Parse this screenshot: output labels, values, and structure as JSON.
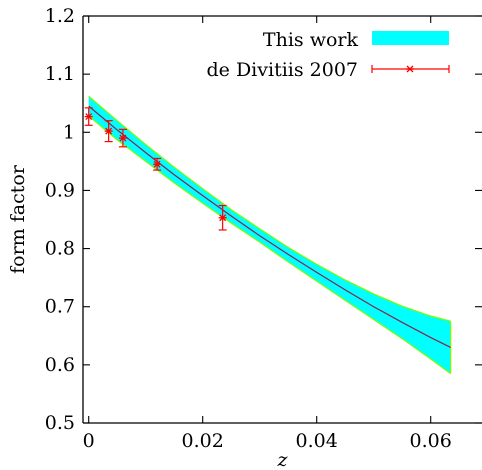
{
  "chart_data": {
    "type": "line",
    "xlabel": "z",
    "ylabel": "form factor",
    "xlim": [
      -0.001,
      0.069
    ],
    "ylim": [
      0.5,
      1.2
    ],
    "xticks": [
      0,
      0.02,
      0.04,
      0.06
    ],
    "xtick_labels": [
      "0",
      "0.02",
      "0.04",
      "0.06"
    ],
    "yticks": [
      0.5,
      0.6,
      0.7,
      0.8,
      0.9,
      1.0,
      1.1,
      1.2
    ],
    "ytick_labels": [
      "0.5",
      "0.6",
      "0.7",
      "0.8",
      "0.9",
      "1",
      "1.1",
      "1.2"
    ],
    "legend_position": "top-right",
    "series": [
      {
        "name": "This work",
        "kind": "band",
        "x": [
          0.0,
          0.005,
          0.01,
          0.015,
          0.02,
          0.025,
          0.03,
          0.035,
          0.04,
          0.045,
          0.05,
          0.055,
          0.06,
          0.0635
        ],
        "y": [
          1.045,
          1.004,
          0.965,
          0.927,
          0.891,
          0.856,
          0.822,
          0.79,
          0.759,
          0.729,
          0.7,
          0.673,
          0.647,
          0.63
        ],
        "upper": [
          1.062,
          1.02,
          0.979,
          0.94,
          0.903,
          0.867,
          0.834,
          0.802,
          0.773,
          0.746,
          0.722,
          0.701,
          0.684,
          0.675
        ],
        "lower": [
          1.028,
          0.987,
          0.95,
          0.913,
          0.878,
          0.844,
          0.811,
          0.777,
          0.744,
          0.711,
          0.678,
          0.645,
          0.61,
          0.585
        ],
        "fill_color": "#00ffff",
        "edge_color": "#7cfc00",
        "line_color": "#8b2252"
      },
      {
        "name": "de Divitiis 2007",
        "kind": "errorbar",
        "x": [
          0.0,
          0.0035,
          0.006,
          0.012,
          0.0235
        ],
        "y": [
          1.027,
          1.002,
          0.99,
          0.945,
          0.853
        ],
        "err": [
          0.015,
          0.018,
          0.015,
          0.01,
          0.021
        ],
        "color": "#ff0000"
      }
    ]
  }
}
